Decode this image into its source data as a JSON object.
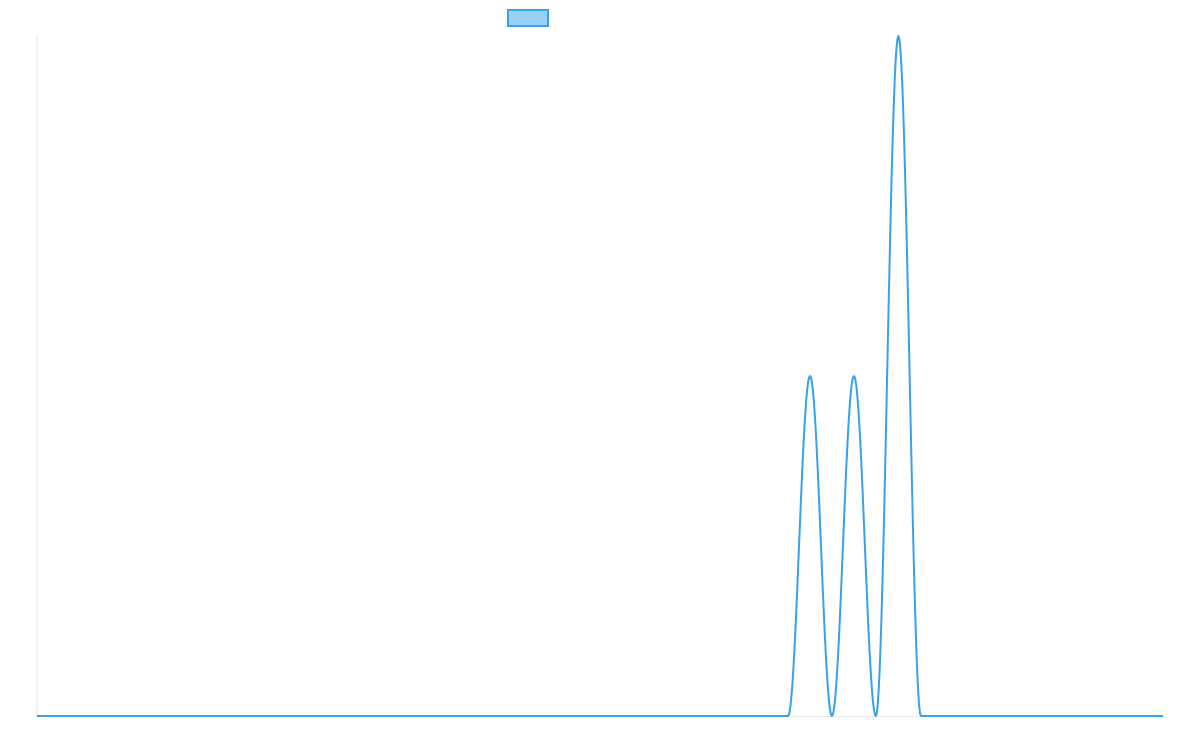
{
  "chart_data": {
    "type": "line",
    "title": "",
    "xlabel": "",
    "ylabel": "",
    "grid": false,
    "legend": "top-center",
    "xlim": [
      0,
      100
    ],
    "ylim": [
      0,
      1
    ],
    "series": [
      {
        "label": "",
        "color": "#36a2eb",
        "fill": "#9ad0f5",
        "peaks": [
          {
            "start": 66.7,
            "end": 70.6,
            "height": 0.5
          },
          {
            "start": 70.6,
            "end": 74.5,
            "height": 0.5
          },
          {
            "start": 74.5,
            "end": 78.5,
            "height": 1.0
          }
        ]
      }
    ]
  }
}
